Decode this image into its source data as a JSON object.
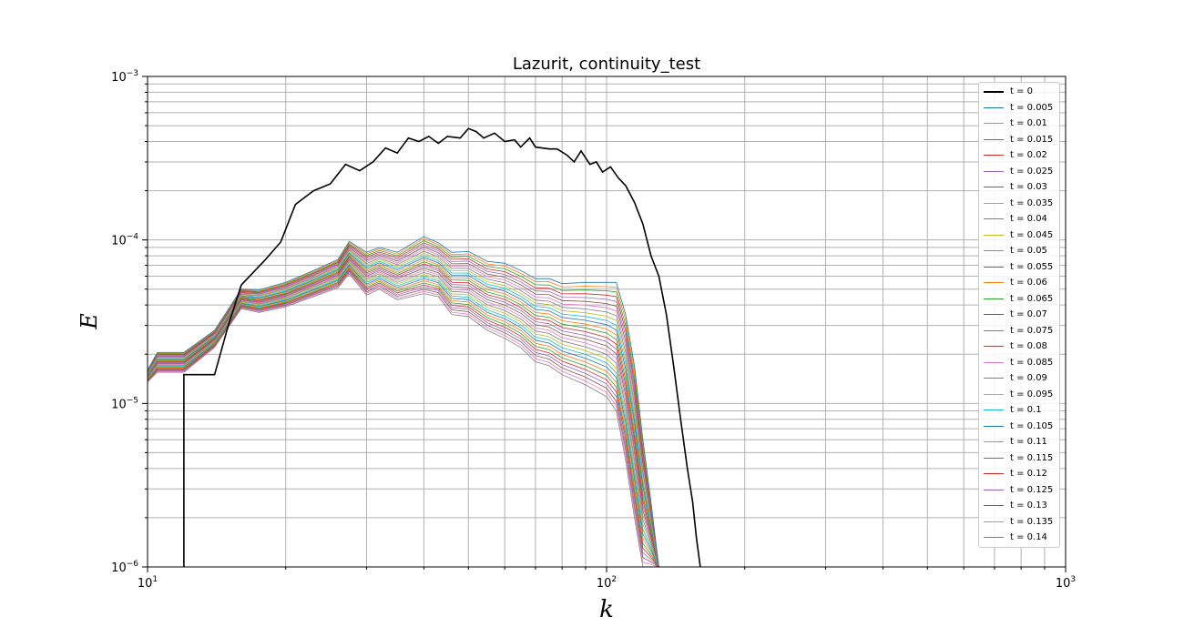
{
  "chart_data": {
    "type": "line",
    "title": "Lazurit, continuity_test",
    "xlabel": "k",
    "ylabel": "E",
    "xscale": "log",
    "yscale": "log",
    "xlim": [
      10,
      1000
    ],
    "ylim": [
      1e-06,
      0.001
    ],
    "x_ticks": [
      {
        "value": 10,
        "label": "10",
        "exp": "1"
      },
      {
        "value": 100,
        "label": "10",
        "exp": "2"
      },
      {
        "value": 1000,
        "label": "10",
        "exp": "3"
      }
    ],
    "y_ticks": [
      {
        "value": 1e-06,
        "label": "10",
        "exp": "−6"
      },
      {
        "value": 1e-05,
        "label": "10",
        "exp": "−5"
      },
      {
        "value": 0.0001,
        "label": "10",
        "exp": "−4"
      },
      {
        "value": 0.001,
        "label": "10",
        "exp": "−3"
      }
    ],
    "grid": true,
    "legend_position": "top-right",
    "reference_series": {
      "name": "t = 0",
      "color": "#000000",
      "points": [
        [
          12,
          1e-06
        ],
        [
          12,
          1.5e-05
        ],
        [
          14,
          1.5e-05
        ],
        [
          15,
          3e-05
        ],
        [
          16,
          5.3e-05
        ],
        [
          18,
          7.5e-05
        ],
        [
          19.5,
          9.7e-05
        ],
        [
          21,
          0.000165
        ],
        [
          23,
          0.0002
        ],
        [
          25,
          0.00022
        ],
        [
          27,
          0.00029
        ],
        [
          29,
          0.000265
        ],
        [
          31,
          0.0003
        ],
        [
          33,
          0.000365
        ],
        [
          35,
          0.00034
        ],
        [
          37,
          0.00042
        ],
        [
          39,
          0.0004
        ],
        [
          41,
          0.00043
        ],
        [
          43,
          0.00039
        ],
        [
          45,
          0.00043
        ],
        [
          48,
          0.00042
        ],
        [
          50,
          0.00048
        ],
        [
          52,
          0.00046
        ],
        [
          54,
          0.00042
        ],
        [
          57,
          0.00045
        ],
        [
          60,
          0.0004
        ],
        [
          63,
          0.00041
        ],
        [
          65,
          0.00037
        ],
        [
          68,
          0.00042
        ],
        [
          70,
          0.00037
        ],
        [
          75,
          0.00036
        ],
        [
          78,
          0.00036
        ],
        [
          82,
          0.00033
        ],
        [
          85,
          0.0003
        ],
        [
          88,
          0.00035
        ],
        [
          92,
          0.00029
        ],
        [
          95,
          0.0003
        ],
        [
          98,
          0.00026
        ],
        [
          102,
          0.00028
        ],
        [
          106,
          0.00024
        ],
        [
          110,
          0.000215
        ],
        [
          115,
          0.00017
        ],
        [
          120,
          0.000125
        ],
        [
          125,
          8e-05
        ],
        [
          130,
          6e-05
        ],
        [
          135,
          3.5e-05
        ],
        [
          140,
          1.7e-05
        ],
        [
          145,
          8e-06
        ],
        [
          150,
          4e-06
        ],
        [
          154,
          2.5e-06
        ],
        [
          157,
          1.5e-06
        ],
        [
          160,
          1e-06
        ]
      ]
    },
    "series_names": [
      "t = 0.005",
      "t = 0.01",
      "t = 0.015",
      "t = 0.02",
      "t = 0.025",
      "t = 0.03",
      "t = 0.035",
      "t = 0.04",
      "t = 0.045",
      "t = 0.05",
      "t = 0.055",
      "t = 0.06",
      "t = 0.065",
      "t = 0.07",
      "t = 0.075",
      "t = 0.08",
      "t = 0.085",
      "t = 0.09",
      "t = 0.095",
      "t = 0.1",
      "t = 0.105",
      "t = 0.11",
      "t = 0.115",
      "t = 0.12",
      "t = 0.125",
      "t = 0.13",
      "t = 0.135",
      "t = 0.14"
    ],
    "series_colors": [
      "#1f77b4",
      "#ff7f0e",
      "#2ca02c",
      "#d62728",
      "#9467bd",
      "#8c564b",
      "#e377c2",
      "#7f7f7f",
      "#bcbd22",
      "#17becf"
    ],
    "series_first": {
      "name": "t = 0.005",
      "points": [
        [
          10,
          1.6e-05
        ],
        [
          10.5,
          2.05e-05
        ],
        [
          12,
          2.05e-05
        ],
        [
          14,
          2.8e-05
        ],
        [
          16,
          5e-05
        ],
        [
          17.5,
          4.95e-05
        ],
        [
          20,
          5.5e-05
        ],
        [
          23,
          6.5e-05
        ],
        [
          26,
          7.6e-05
        ],
        [
          27.5,
          9.8e-05
        ],
        [
          30,
          8.4e-05
        ],
        [
          32,
          9e-05
        ],
        [
          35,
          8.4e-05
        ],
        [
          40,
          0.000105
        ],
        [
          43,
          9.6e-05
        ],
        [
          46,
          8.4e-05
        ],
        [
          50,
          8.5e-05
        ],
        [
          55,
          7.4e-05
        ],
        [
          60,
          7.2e-05
        ],
        [
          65,
          6.5e-05
        ],
        [
          70,
          5.8e-05
        ],
        [
          75,
          5.8e-05
        ],
        [
          80,
          5.4e-05
        ],
        [
          90,
          5.5e-05
        ],
        [
          100,
          5.5e-05
        ],
        [
          105,
          5.5e-05
        ],
        [
          110,
          3.5e-05
        ],
        [
          115,
          1.7e-05
        ],
        [
          120,
          6e-06
        ],
        [
          125,
          2.5e-06
        ],
        [
          130,
          1e-06
        ]
      ]
    },
    "series_last": {
      "name": "t = 0.14",
      "points": [
        [
          10,
          1.35e-05
        ],
        [
          10.5,
          1.55e-05
        ],
        [
          12,
          1.55e-05
        ],
        [
          14,
          2.2e-05
        ],
        [
          16,
          3.8e-05
        ],
        [
          17.5,
          3.6e-05
        ],
        [
          20,
          3.9e-05
        ],
        [
          23,
          4.5e-05
        ],
        [
          26,
          5.1e-05
        ],
        [
          27.5,
          6.2e-05
        ],
        [
          30,
          4.6e-05
        ],
        [
          32,
          5e-05
        ],
        [
          35,
          4.3e-05
        ],
        [
          40,
          4.7e-05
        ],
        [
          43,
          4.5e-05
        ],
        [
          46,
          3.5e-05
        ],
        [
          50,
          3.4e-05
        ],
        [
          55,
          2.8e-05
        ],
        [
          60,
          2.5e-05
        ],
        [
          65,
          2.2e-05
        ],
        [
          70,
          1.8e-05
        ],
        [
          75,
          1.7e-05
        ],
        [
          80,
          1.5e-05
        ],
        [
          90,
          1.3e-05
        ],
        [
          100,
          1.1e-05
        ],
        [
          105,
          9e-06
        ],
        [
          110,
          4.5e-06
        ],
        [
          115,
          2e-06
        ],
        [
          120,
          1e-06
        ],
        [
          125,
          1e-06
        ],
        [
          130,
          1e-06
        ]
      ]
    }
  }
}
